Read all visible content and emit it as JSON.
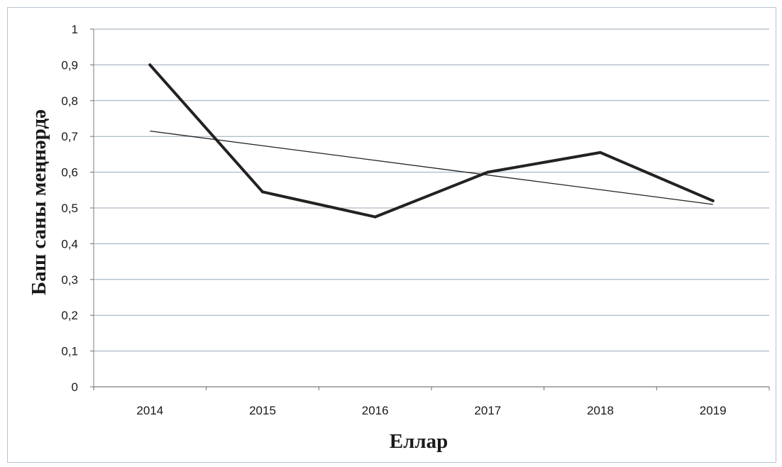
{
  "chart_data": {
    "type": "line",
    "title": "",
    "xlabel": "Еллар",
    "ylabel": "Баш саны меңнәрдә",
    "categories": [
      "2014",
      "2015",
      "2016",
      "2017",
      "2018",
      "2019"
    ],
    "y_ticks": [
      "0",
      "0,1",
      "0,2",
      "0,3",
      "0,4",
      "0,5",
      "0,6",
      "0,7",
      "0,8",
      "0,9",
      "1"
    ],
    "ylim": [
      0,
      1
    ],
    "grid": true,
    "legend": "none",
    "series": [
      {
        "values": [
          0.9,
          0.545,
          0.475,
          0.6,
          0.655,
          0.52
        ],
        "color": "#222222",
        "style": "thick"
      }
    ],
    "trendline": {
      "type": "linear",
      "start": 0.715,
      "end": 0.51,
      "color": "#222222"
    }
  }
}
